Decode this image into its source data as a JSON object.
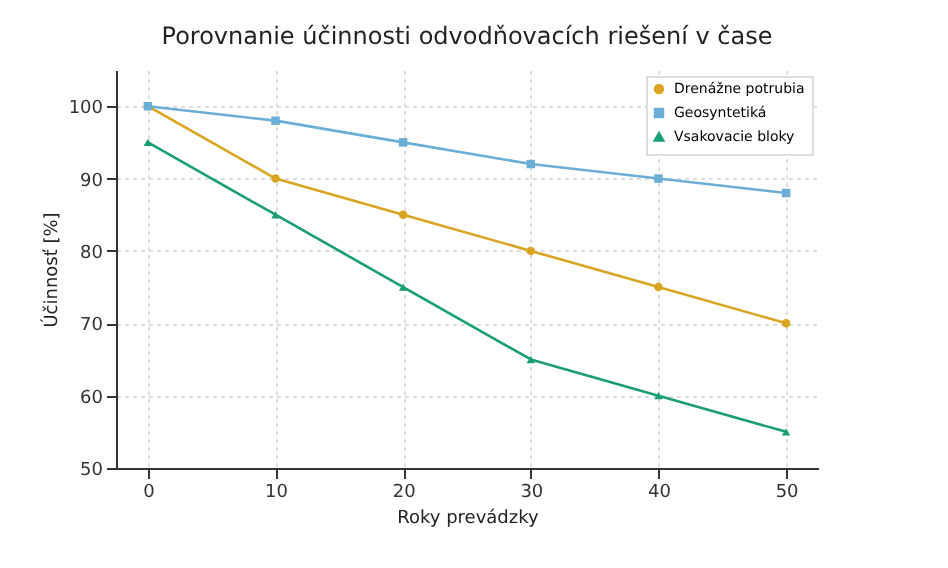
{
  "chart_data": {
    "type": "line",
    "title": "Porovnanie účinnosti odvodňovacích riešení v čase",
    "xlabel": "Roky prevádzky",
    "ylabel": "Účinnosť [%]",
    "x": [
      0,
      10,
      20,
      30,
      40,
      50
    ],
    "series": [
      {
        "name": "Drenážne potrubia",
        "color": "#daa520",
        "marker": "circle",
        "values": [
          100,
          90,
          85,
          80,
          75,
          70
        ]
      },
      {
        "name": "Geosyntetiká",
        "color": "#6baed6",
        "marker": "square",
        "values": [
          100,
          98,
          95,
          92,
          90,
          88
        ]
      },
      {
        "name": "Vsakovacie bloky",
        "color": "#1b9e77",
        "marker": "triangle",
        "values": [
          95,
          85,
          75,
          65,
          60,
          55
        ]
      }
    ],
    "xlim": [
      -2.5,
      52.5
    ],
    "xticks": [
      0,
      10,
      20,
      30,
      40,
      50
    ],
    "ylim": [
      50,
      105
    ],
    "yticks": [
      50,
      60,
      70,
      80,
      90,
      100
    ],
    "grid": true,
    "legend": "top right",
    "line_style": "solid"
  }
}
